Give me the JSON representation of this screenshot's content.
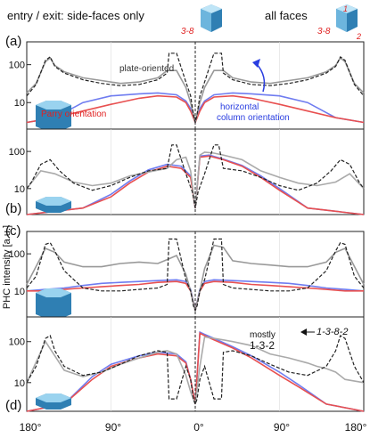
{
  "header": {
    "left_label": "entry / exit:  side-faces only",
    "left_faces": "3-8",
    "right_label": "all faces",
    "right_faces": "3-8",
    "right_face_top": "1",
    "right_face_bottom": "2"
  },
  "ylabel": "PHC intensity [a.u.]",
  "xticks": [
    "180°",
    "90°",
    "0°",
    "90°",
    "180°"
  ],
  "chart_data": [
    {
      "type": "line",
      "panel": "(a)",
      "yscale": "log",
      "ytick_labels": [
        "100",
        "10"
      ],
      "xlim": [
        -180,
        180
      ],
      "annotations": [
        "plate-oriented",
        "Parry orientation",
        "horizontal column orientation"
      ],
      "series": [
        {
          "color": "#222222",
          "style": "dashed",
          "x": [
            -180,
            -170,
            -160,
            -155,
            -150,
            -140,
            -120,
            -100,
            -80,
            -60,
            -40,
            -30,
            -28,
            -20,
            -10,
            -5,
            -2,
            0,
            2,
            5,
            10,
            20,
            28,
            30,
            40,
            60,
            80,
            100,
            120,
            140,
            150,
            155,
            160,
            170,
            180
          ],
          "y": [
            15,
            30,
            130,
            160,
            90,
            60,
            40,
            32,
            28,
            30,
            40,
            60,
            200,
            200,
            35,
            15,
            5,
            3,
            5,
            15,
            35,
            200,
            200,
            60,
            40,
            30,
            28,
            32,
            40,
            60,
            90,
            160,
            130,
            30,
            15
          ]
        },
        {
          "color": "#999999",
          "x": [
            -180,
            -170,
            -160,
            -155,
            -150,
            -140,
            -120,
            -100,
            -80,
            -60,
            -40,
            -30,
            -20,
            -10,
            -5,
            0,
            5,
            10,
            20,
            30,
            40,
            60,
            80,
            100,
            120,
            140,
            150,
            155,
            160,
            170,
            180
          ],
          "y": [
            18,
            32,
            120,
            150,
            95,
            65,
            45,
            38,
            32,
            35,
            45,
            70,
            70,
            25,
            10,
            3,
            10,
            25,
            70,
            70,
            45,
            35,
            32,
            38,
            45,
            65,
            95,
            150,
            120,
            32,
            18
          ]
        },
        {
          "color": "#e85050",
          "x": [
            -180,
            -150,
            -120,
            -90,
            -60,
            -40,
            -20,
            -10,
            -5,
            0,
            5,
            10,
            20,
            40,
            60,
            90,
            120,
            150,
            180
          ],
          "y": [
            3,
            4,
            6,
            9,
            13,
            15,
            14,
            10,
            6,
            3,
            6,
            10,
            14,
            15,
            13,
            9,
            6,
            4,
            3
          ]
        },
        {
          "color": "#6f7cf0",
          "x": [
            -180,
            -150,
            -120,
            -90,
            -60,
            -40,
            -20,
            -10,
            -5,
            0,
            5,
            10,
            20,
            40,
            60,
            90,
            120,
            150,
            180
          ],
          "y": [
            3,
            4,
            10,
            15,
            17,
            18,
            16,
            11,
            7,
            3,
            7,
            11,
            16,
            18,
            17,
            15,
            10,
            4,
            3
          ]
        }
      ]
    },
    {
      "type": "line",
      "panel": "(b)",
      "yscale": "log",
      "ytick_labels": [
        "100",
        "10"
      ],
      "xlim": [
        -180,
        180
      ],
      "series": [
        {
          "color": "#222222",
          "style": "dashed",
          "x": [
            -180,
            -175,
            -165,
            -155,
            -145,
            -130,
            -110,
            -90,
            -70,
            -50,
            -30,
            -25,
            -20,
            -10,
            -3,
            0,
            3,
            10,
            20,
            25,
            30,
            50,
            70,
            90,
            110,
            130,
            145,
            155,
            165,
            175,
            180
          ],
          "y": [
            10,
            15,
            45,
            60,
            30,
            14,
            9,
            12,
            20,
            30,
            35,
            150,
            150,
            25,
            8,
            3,
            8,
            25,
            150,
            150,
            35,
            30,
            20,
            12,
            9,
            14,
            30,
            60,
            45,
            15,
            10
          ]
        },
        {
          "color": "#aaaaaa",
          "x": [
            -180,
            -165,
            -150,
            -130,
            -110,
            -90,
            -70,
            -50,
            -30,
            -20,
            -10,
            -5,
            0,
            5,
            10,
            20,
            30,
            50,
            70,
            90,
            110,
            130,
            150,
            165,
            180
          ],
          "y": [
            10,
            30,
            25,
            15,
            12,
            14,
            22,
            28,
            35,
            60,
            70,
            30,
            3,
            80,
            95,
            90,
            80,
            60,
            30,
            20,
            14,
            12,
            15,
            25,
            10
          ]
        },
        {
          "color": "#e85050",
          "x": [
            -180,
            -120,
            -90,
            -70,
            -50,
            -30,
            -15,
            -5,
            0,
            5,
            15,
            30,
            50,
            70,
            90,
            120,
            180
          ],
          "y": [
            2,
            3,
            6,
            14,
            28,
            40,
            35,
            20,
            3,
            70,
            75,
            60,
            40,
            20,
            9,
            3,
            2
          ]
        },
        {
          "color": "#6f7cf0",
          "x": [
            -180,
            -120,
            -90,
            -70,
            -50,
            -30,
            -15,
            -5,
            0,
            5,
            15,
            30,
            50,
            70,
            90,
            120,
            180
          ],
          "y": [
            2,
            3,
            7,
            16,
            32,
            45,
            40,
            22,
            3,
            75,
            80,
            62,
            42,
            22,
            10,
            3,
            2
          ]
        }
      ]
    },
    {
      "type": "line",
      "panel": "(c)",
      "yscale": "log",
      "ytick_labels": [
        "100",
        "10"
      ],
      "xlim": [
        -180,
        180
      ],
      "series": [
        {
          "color": "#222222",
          "style": "dashed",
          "x": [
            -180,
            -170,
            -160,
            -155,
            -150,
            -140,
            -120,
            -100,
            -80,
            -60,
            -40,
            -30,
            -28,
            -20,
            -10,
            -5,
            -2,
            0,
            2,
            5,
            10,
            20,
            28,
            30,
            40,
            60,
            80,
            100,
            120,
            140,
            150,
            155,
            160,
            170,
            180
          ],
          "y": [
            12,
            25,
            180,
            200,
            120,
            35,
            12,
            10,
            10,
            11,
            12,
            15,
            250,
            250,
            20,
            10,
            4,
            3,
            4,
            10,
            20,
            250,
            250,
            15,
            12,
            11,
            10,
            10,
            12,
            35,
            120,
            200,
            180,
            25,
            12
          ]
        },
        {
          "color": "#999999",
          "x": [
            -180,
            -160,
            -150,
            -140,
            -120,
            -100,
            -80,
            -60,
            -40,
            -30,
            -20,
            -10,
            -5,
            0,
            5,
            10,
            20,
            30,
            40,
            60,
            80,
            100,
            120,
            140,
            150,
            160,
            180
          ],
          "y": [
            15,
            140,
            110,
            60,
            45,
            45,
            55,
            60,
            55,
            70,
            90,
            28,
            10,
            3,
            10,
            40,
            170,
            150,
            65,
            55,
            50,
            45,
            45,
            60,
            110,
            140,
            15
          ]
        },
        {
          "color": "#e85050",
          "x": [
            -180,
            -160,
            -140,
            -120,
            -100,
            -80,
            -60,
            -40,
            -20,
            -10,
            -5,
            0,
            5,
            10,
            20,
            40,
            60,
            80,
            100,
            120,
            140,
            160,
            180
          ],
          "y": [
            10,
            10,
            11,
            12,
            13,
            14,
            15,
            17,
            18,
            16,
            10,
            3,
            10,
            16,
            18,
            17,
            15,
            14,
            13,
            12,
            11,
            10,
            10
          ]
        },
        {
          "color": "#6f7cf0",
          "x": [
            -180,
            -160,
            -140,
            -120,
            -100,
            -80,
            -60,
            -40,
            -20,
            -10,
            -5,
            0,
            5,
            10,
            20,
            40,
            60,
            80,
            100,
            120,
            140,
            160,
            180
          ],
          "y": [
            10,
            11,
            12,
            14,
            16,
            17,
            18,
            19,
            20,
            18,
            11,
            3,
            11,
            18,
            20,
            19,
            18,
            17,
            16,
            14,
            12,
            11,
            10
          ]
        }
      ]
    },
    {
      "type": "line",
      "panel": "(d)",
      "yscale": "log",
      "ytick_labels": [
        "100",
        "10"
      ],
      "xlim": [
        -180,
        180
      ],
      "annotations": [
        "mostly",
        "1-3-2",
        "1-3-8-2"
      ],
      "series": [
        {
          "color": "#222222",
          "style": "dashed",
          "x": [
            -180,
            -170,
            -160,
            -155,
            -150,
            -140,
            -120,
            -100,
            -80,
            -60,
            -40,
            -30,
            -28,
            -20,
            -10,
            -5,
            -2,
            0,
            2,
            5,
            10,
            20,
            28,
            30,
            40,
            60,
            80,
            100,
            120,
            140,
            150,
            155,
            160,
            170,
            180
          ],
          "y": [
            10,
            25,
            120,
            140,
            60,
            25,
            15,
            18,
            28,
            45,
            60,
            55,
            4,
            4,
            25,
            12,
            4,
            3,
            4,
            12,
            25,
            4,
            4,
            55,
            60,
            45,
            28,
            18,
            15,
            25,
            60,
            140,
            120,
            25,
            10
          ]
        },
        {
          "color": "#aaaaaa",
          "x": [
            -180,
            -160,
            -150,
            -140,
            -120,
            -100,
            -80,
            -60,
            -40,
            -30,
            -20,
            -10,
            -5,
            0,
            5,
            10,
            20,
            30,
            40,
            60,
            80,
            100,
            120,
            130,
            140,
            150,
            160,
            180
          ],
          "y": [
            10,
            100,
            45,
            20,
            14,
            18,
            28,
            40,
            55,
            60,
            50,
            15,
            6,
            3,
            25,
            130,
            120,
            110,
            100,
            80,
            50,
            40,
            30,
            25,
            22,
            18,
            12,
            10
          ]
        },
        {
          "color": "#e85050",
          "x": [
            -180,
            -140,
            -110,
            -90,
            -60,
            -40,
            -20,
            -10,
            -5,
            0,
            5,
            10,
            20,
            40,
            60,
            90,
            110,
            140,
            180
          ],
          "y": [
            2,
            3,
            12,
            25,
            40,
            50,
            45,
            30,
            12,
            3,
            160,
            140,
            110,
            70,
            40,
            15,
            8,
            3,
            2
          ]
        },
        {
          "color": "#6f7cf0",
          "x": [
            -180,
            -140,
            -110,
            -90,
            -60,
            -40,
            -20,
            -10,
            -5,
            0,
            5,
            10,
            20,
            40,
            60,
            90,
            110,
            140,
            180
          ],
          "y": [
            2,
            3,
            14,
            28,
            45,
            55,
            50,
            32,
            12,
            3,
            170,
            150,
            120,
            75,
            45,
            18,
            9,
            3,
            2
          ]
        }
      ]
    }
  ],
  "colors": {
    "red": "#e02020",
    "blue_arrow": "#2a3ee0",
    "crystal_top": "#9ad3ef",
    "crystal_side": "#2f7fb3"
  }
}
